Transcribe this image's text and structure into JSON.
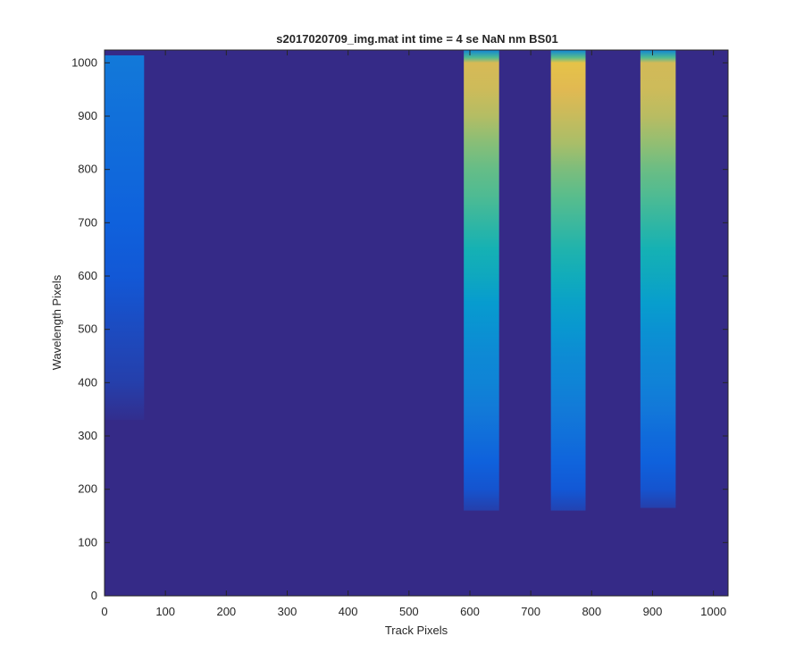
{
  "chart_data": {
    "type": "heatmap",
    "title": "s2017020709_img.mat int time = 4 se  NaN nm BS01",
    "xlabel": "Track Pixels",
    "ylabel": "Wavelength Pixels",
    "xlim": [
      0,
      1024
    ],
    "ylim": [
      0,
      1024
    ],
    "x_ticks": [
      0,
      100,
      200,
      300,
      400,
      500,
      600,
      700,
      800,
      900,
      1000
    ],
    "y_ticks": [
      0,
      100,
      200,
      300,
      400,
      500,
      600,
      700,
      800,
      900,
      1000
    ],
    "colormap": "parula",
    "background_color": "#352a87",
    "grid": false,
    "bands": [
      {
        "x_range": [
          590,
          648
        ],
        "y_range": [
          160,
          1024
        ],
        "profile": [
          {
            "y": 160,
            "v": 0.05
          },
          {
            "y": 200,
            "v": 0.1
          },
          {
            "y": 250,
            "v": 0.14
          },
          {
            "y": 300,
            "v": 0.19
          },
          {
            "y": 350,
            "v": 0.24
          },
          {
            "y": 400,
            "v": 0.28
          },
          {
            "y": 450,
            "v": 0.3
          },
          {
            "y": 500,
            "v": 0.34
          },
          {
            "y": 550,
            "v": 0.38
          },
          {
            "y": 600,
            "v": 0.45
          },
          {
            "y": 650,
            "v": 0.5
          },
          {
            "y": 700,
            "v": 0.55
          },
          {
            "y": 750,
            "v": 0.6
          },
          {
            "y": 800,
            "v": 0.64
          },
          {
            "y": 850,
            "v": 0.7
          },
          {
            "y": 900,
            "v": 0.78
          },
          {
            "y": 950,
            "v": 0.83
          },
          {
            "y": 1000,
            "v": 0.85
          },
          {
            "y": 1010,
            "v": 0.6
          },
          {
            "y": 1024,
            "v": 0.28
          }
        ]
      },
      {
        "x_range": [
          733,
          790
        ],
        "y_range": [
          160,
          1024
        ],
        "profile": [
          {
            "y": 160,
            "v": 0.06
          },
          {
            "y": 200,
            "v": 0.11
          },
          {
            "y": 250,
            "v": 0.15
          },
          {
            "y": 300,
            "v": 0.2
          },
          {
            "y": 350,
            "v": 0.24
          },
          {
            "y": 400,
            "v": 0.28
          },
          {
            "y": 450,
            "v": 0.31
          },
          {
            "y": 500,
            "v": 0.36
          },
          {
            "y": 550,
            "v": 0.41
          },
          {
            "y": 600,
            "v": 0.47
          },
          {
            "y": 650,
            "v": 0.52
          },
          {
            "y": 700,
            "v": 0.57
          },
          {
            "y": 750,
            "v": 0.62
          },
          {
            "y": 800,
            "v": 0.68
          },
          {
            "y": 850,
            "v": 0.76
          },
          {
            "y": 900,
            "v": 0.82
          },
          {
            "y": 950,
            "v": 0.87
          },
          {
            "y": 1000,
            "v": 0.89
          },
          {
            "y": 1010,
            "v": 0.62
          },
          {
            "y": 1024,
            "v": 0.28
          }
        ]
      },
      {
        "x_range": [
          880,
          938
        ],
        "y_range": [
          165,
          1024
        ],
        "profile": [
          {
            "y": 165,
            "v": 0.05
          },
          {
            "y": 200,
            "v": 0.1
          },
          {
            "y": 250,
            "v": 0.14
          },
          {
            "y": 300,
            "v": 0.18
          },
          {
            "y": 350,
            "v": 0.23
          },
          {
            "y": 400,
            "v": 0.27
          },
          {
            "y": 450,
            "v": 0.3
          },
          {
            "y": 500,
            "v": 0.34
          },
          {
            "y": 550,
            "v": 0.39
          },
          {
            "y": 600,
            "v": 0.45
          },
          {
            "y": 650,
            "v": 0.5
          },
          {
            "y": 700,
            "v": 0.55
          },
          {
            "y": 750,
            "v": 0.6
          },
          {
            "y": 800,
            "v": 0.65
          },
          {
            "y": 850,
            "v": 0.72
          },
          {
            "y": 900,
            "v": 0.79
          },
          {
            "y": 950,
            "v": 0.83
          },
          {
            "y": 1000,
            "v": 0.84
          },
          {
            "y": 1010,
            "v": 0.6
          },
          {
            "y": 1024,
            "v": 0.28
          }
        ]
      },
      {
        "x_range": [
          0,
          65
        ],
        "y_range": [
          330,
          1014
        ],
        "profile": [
          {
            "y": 330,
            "v": 0.01
          },
          {
            "y": 400,
            "v": 0.05
          },
          {
            "y": 500,
            "v": 0.08
          },
          {
            "y": 600,
            "v": 0.11
          },
          {
            "y": 700,
            "v": 0.14
          },
          {
            "y": 800,
            "v": 0.17
          },
          {
            "y": 900,
            "v": 0.2
          },
          {
            "y": 1000,
            "v": 0.23
          },
          {
            "y": 1014,
            "v": 0.24
          }
        ]
      }
    ]
  }
}
